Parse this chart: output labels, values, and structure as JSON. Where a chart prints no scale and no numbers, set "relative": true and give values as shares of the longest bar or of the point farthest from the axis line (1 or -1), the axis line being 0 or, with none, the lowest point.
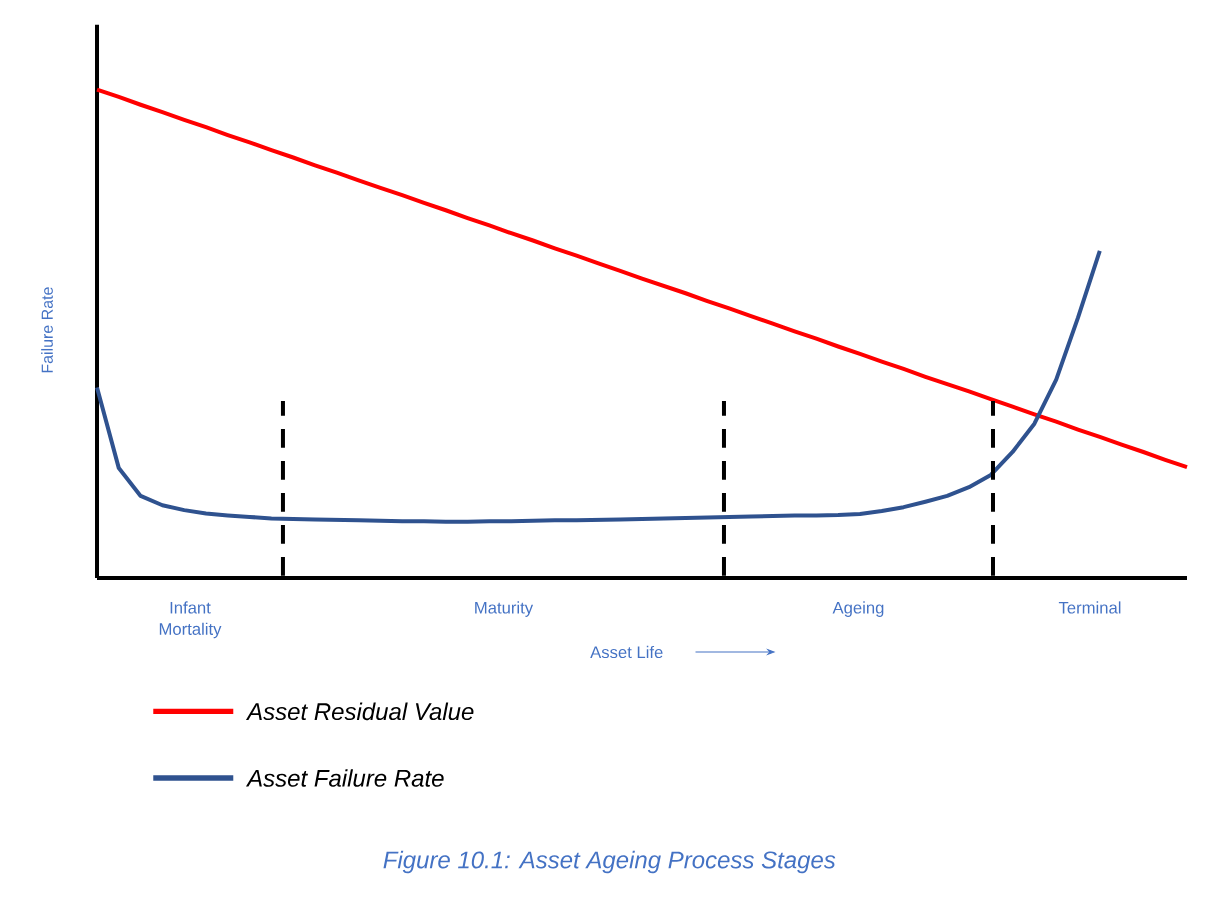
{
  "chart_data": {
    "type": "line",
    "relative": true,
    "title": "Figure 10.1: Asset Ageing Process Stages",
    "xlabel": "Asset Life",
    "ylabel": "Failure Rate",
    "legend": "bottom",
    "marker": "none",
    "line_style": "solid",
    "categories": [
      null,
      null,
      null,
      null,
      null,
      null,
      null,
      null,
      null,
      null,
      null,
      null,
      null,
      null,
      null,
      null,
      null,
      null,
      null,
      null,
      null,
      null,
      null,
      null,
      null,
      null,
      null,
      null,
      null,
      null,
      null,
      null,
      null,
      null,
      null,
      null,
      null,
      null,
      null,
      null,
      null,
      null,
      null,
      null,
      null,
      null,
      null,
      null,
      null,
      null,
      null
    ],
    "series": [
      {
        "name": "Asset Residual Value",
        "color": "#ff0000",
        "values": [
          1.0,
          0.985,
          0.969,
          0.954,
          0.938,
          0.923,
          0.907,
          0.892,
          0.876,
          0.861,
          0.845,
          0.83,
          0.814,
          0.799,
          0.784,
          0.768,
          0.753,
          0.737,
          0.722,
          0.706,
          0.691,
          0.675,
          0.66,
          0.644,
          0.629,
          0.613,
          0.598,
          0.583,
          0.567,
          0.552,
          0.536,
          0.521,
          0.505,
          0.49,
          0.474,
          0.459,
          0.443,
          0.428,
          0.412,
          0.397,
          0.382,
          0.366,
          0.351,
          0.335,
          0.32,
          0.304,
          0.289,
          0.273,
          0.258,
          0.242,
          0.227
        ]
      },
      {
        "name": "Asset Failure Rate",
        "color": "#2f528f",
        "values": [
          0.39,
          0.225,
          0.168,
          0.149,
          0.139,
          0.132,
          0.128,
          0.125,
          0.122,
          0.121,
          0.12,
          0.119,
          0.118,
          0.117,
          0.116,
          0.116,
          0.115,
          0.115,
          0.116,
          0.116,
          0.117,
          0.118,
          0.118,
          0.119,
          0.12,
          0.121,
          0.122,
          0.123,
          0.124,
          0.125,
          0.126,
          0.127,
          0.128,
          0.128,
          0.129,
          0.131,
          0.137,
          0.145,
          0.156,
          0.168,
          0.186,
          0.211,
          0.258,
          0.316,
          0.406,
          0.533,
          0.67,
          null,
          null,
          null,
          null
        ]
      }
    ],
    "annotations": [
      "Infant Mortality",
      "Maturity",
      "Ageing",
      "Terminal"
    ]
  }
}
